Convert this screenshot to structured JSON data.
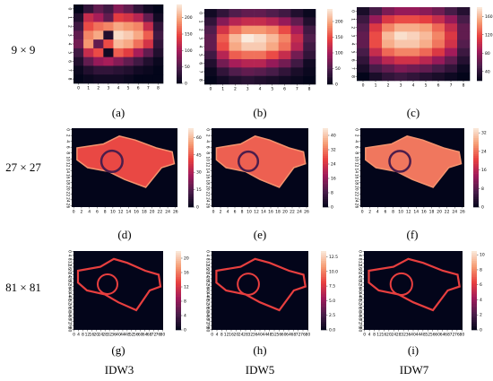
{
  "figure": {
    "row_labels": [
      "9 × 9",
      "27 × 27",
      "81 × 81"
    ],
    "column_labels": [
      "IDW3",
      "IDW5",
      "IDW7"
    ]
  },
  "chart_data": [
    {
      "type": "heatmap",
      "panel_label": "(a)",
      "xticks": [
        0,
        1,
        2,
        3,
        4,
        5,
        6,
        7,
        8
      ],
      "yticks": [
        0,
        1,
        2,
        3,
        4,
        5,
        6,
        7,
        8
      ],
      "clim": [
        0,
        240
      ],
      "colorbar_ticks": [
        0,
        50,
        100,
        150,
        200
      ],
      "matrix": [
        [
          0,
          30,
          60,
          40,
          80,
          60,
          30,
          10,
          0
        ],
        [
          20,
          120,
          100,
          60,
          140,
          130,
          110,
          60,
          10
        ],
        [
          40,
          150,
          170,
          180,
          200,
          190,
          180,
          120,
          30
        ],
        [
          60,
          180,
          200,
          20,
          230,
          220,
          200,
          160,
          40
        ],
        [
          70,
          190,
          60,
          150,
          210,
          200,
          170,
          130,
          30
        ],
        [
          40,
          120,
          150,
          10,
          160,
          140,
          100,
          60,
          20
        ],
        [
          20,
          60,
          90,
          100,
          80,
          60,
          40,
          20,
          5
        ],
        [
          5,
          20,
          30,
          30,
          25,
          20,
          10,
          5,
          0
        ],
        [
          0,
          5,
          10,
          10,
          10,
          5,
          0,
          0,
          0
        ]
      ]
    },
    {
      "type": "heatmap",
      "panel_label": "(b)",
      "xticks": [
        0,
        1,
        2,
        3,
        4,
        5,
        6,
        7,
        8
      ],
      "yticks": [
        0,
        1,
        2,
        3,
        4,
        5,
        6,
        7,
        8
      ],
      "clim": [
        0,
        240
      ],
      "colorbar_ticks": [
        0,
        50,
        100,
        150,
        200
      ],
      "matrix": [
        [
          10,
          30,
          50,
          60,
          60,
          50,
          40,
          20,
          5
        ],
        [
          30,
          80,
          110,
          120,
          120,
          110,
          90,
          60,
          20
        ],
        [
          50,
          130,
          170,
          190,
          190,
          180,
          150,
          100,
          40
        ],
        [
          60,
          160,
          210,
          240,
          230,
          210,
          180,
          120,
          50
        ],
        [
          60,
          150,
          200,
          220,
          220,
          200,
          170,
          110,
          40
        ],
        [
          40,
          110,
          160,
          170,
          170,
          150,
          120,
          70,
          30
        ],
        [
          20,
          70,
          100,
          110,
          110,
          90,
          70,
          40,
          10
        ],
        [
          5,
          30,
          50,
          60,
          55,
          45,
          30,
          15,
          5
        ],
        [
          0,
          10,
          20,
          25,
          20,
          15,
          10,
          5,
          0
        ]
      ]
    },
    {
      "type": "heatmap",
      "panel_label": "(c)",
      "xticks": [
        0,
        1,
        2,
        3,
        4,
        5,
        6,
        7,
        8
      ],
      "yticks": [
        0,
        1,
        2,
        3,
        4,
        5,
        6,
        7,
        8
      ],
      "clim": [
        20,
        180
      ],
      "colorbar_ticks": [
        40,
        80,
        120,
        160
      ],
      "matrix": [
        [
          30,
          50,
          70,
          80,
          80,
          75,
          65,
          50,
          35
        ],
        [
          45,
          80,
          110,
          120,
          120,
          115,
          100,
          80,
          50
        ],
        [
          55,
          110,
          140,
          155,
          155,
          150,
          130,
          100,
          60
        ],
        [
          60,
          120,
          160,
          175,
          170,
          160,
          140,
          110,
          60
        ],
        [
          60,
          120,
          155,
          165,
          165,
          155,
          135,
          105,
          55
        ],
        [
          50,
          100,
          130,
          140,
          140,
          130,
          110,
          85,
          45
        ],
        [
          40,
          75,
          95,
          105,
          105,
          95,
          80,
          60,
          35
        ],
        [
          30,
          50,
          60,
          70,
          65,
          60,
          50,
          40,
          25
        ],
        [
          20,
          30,
          40,
          45,
          40,
          35,
          30,
          25,
          20
        ]
      ]
    },
    {
      "type": "heatmap",
      "panel_label": "(d)",
      "xticks": [
        0,
        2,
        4,
        6,
        8,
        10,
        12,
        14,
        16,
        18,
        20,
        22,
        24,
        26
      ],
      "yticks": [
        0,
        2,
        4,
        6,
        8,
        10,
        12,
        14,
        16,
        18,
        20,
        22,
        24,
        26
      ],
      "grid_size": 27,
      "clim": [
        0,
        68
      ],
      "colorbar_ticks": [
        0,
        15,
        30,
        45,
        60
      ]
    },
    {
      "type": "heatmap",
      "panel_label": "(e)",
      "xticks": [
        0,
        2,
        4,
        6,
        8,
        10,
        12,
        14,
        16,
        18,
        20,
        22,
        24,
        26
      ],
      "yticks": [
        0,
        2,
        4,
        6,
        8,
        10,
        12,
        14,
        16,
        18,
        20,
        22,
        24,
        26
      ],
      "grid_size": 27,
      "clim": [
        0,
        44
      ],
      "colorbar_ticks": [
        0,
        8,
        16,
        24,
        32,
        40
      ]
    },
    {
      "type": "heatmap",
      "panel_label": "(f)",
      "xticks": [
        0,
        2,
        4,
        6,
        8,
        10,
        12,
        14,
        16,
        18,
        20,
        22,
        24,
        26
      ],
      "yticks": [
        0,
        2,
        4,
        6,
        8,
        10,
        12,
        14,
        16,
        18,
        20,
        22,
        24,
        26
      ],
      "grid_size": 27,
      "clim": [
        0,
        34
      ],
      "colorbar_ticks": [
        0,
        8,
        16,
        24,
        32
      ]
    },
    {
      "type": "heatmap",
      "panel_label": "(g)",
      "xticks": [
        0,
        4,
        8,
        12,
        16,
        20,
        24,
        28,
        32,
        36,
        40,
        44,
        48,
        52,
        56,
        60,
        64,
        68,
        72,
        76,
        80
      ],
      "yticks": [
        0,
        4,
        8,
        12,
        16,
        20,
        24,
        28,
        32,
        36,
        40,
        44,
        48,
        52,
        56,
        60,
        64,
        68,
        72,
        76,
        80
      ],
      "grid_size": 81,
      "clim": [
        0,
        22
      ],
      "colorbar_ticks": [
        0,
        4,
        8,
        12,
        16,
        20
      ]
    },
    {
      "type": "heatmap",
      "panel_label": "(h)",
      "xticks": [
        0,
        4,
        8,
        12,
        16,
        20,
        24,
        28,
        32,
        36,
        40,
        44,
        48,
        52,
        56,
        60,
        64,
        68,
        72,
        76,
        80
      ],
      "yticks": [
        0,
        4,
        8,
        12,
        16,
        20,
        24,
        28,
        32,
        36,
        40,
        44,
        48,
        52,
        56,
        60,
        64,
        68,
        72,
        76,
        80
      ],
      "grid_size": 81,
      "clim": [
        0,
        13.5
      ],
      "colorbar_ticks": [
        {
          "value": 0,
          "label": "0.0"
        },
        2.5,
        {
          "value": 5,
          "label": "5.0"
        },
        7.5,
        {
          "value": 10,
          "label": "10.0"
        },
        12.5
      ]
    },
    {
      "type": "heatmap",
      "panel_label": "(i)",
      "xticks": [
        0,
        4,
        8,
        12,
        16,
        20,
        24,
        28,
        32,
        36,
        40,
        44,
        48,
        52,
        56,
        60,
        64,
        68,
        72,
        76,
        80
      ],
      "yticks": [
        0,
        4,
        8,
        12,
        16,
        20,
        24,
        28,
        32,
        36,
        40,
        44,
        48,
        52,
        56,
        60,
        64,
        68,
        72,
        76,
        80
      ],
      "grid_size": 81,
      "clim": [
        0,
        10.5
      ],
      "colorbar_ticks": [
        0,
        2,
        4,
        6,
        8,
        10
      ]
    }
  ]
}
